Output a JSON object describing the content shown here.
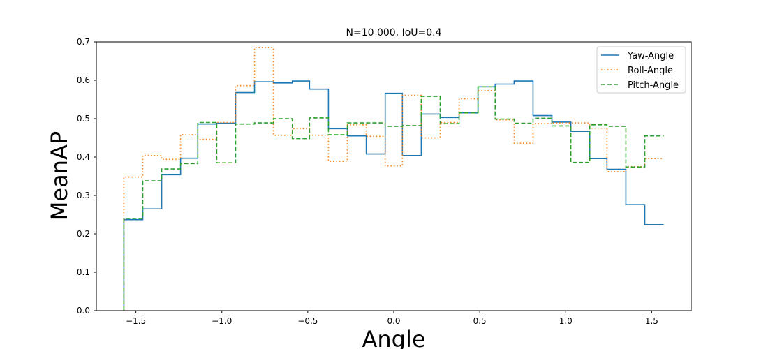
{
  "chart_data": {
    "type": "line",
    "step": true,
    "title": "N=10 000, IoU=0.4",
    "xlabel": "Angle",
    "ylabel": "MeanAP",
    "xlim": [
      -1.73,
      1.73
    ],
    "ylim": [
      0.0,
      0.7
    ],
    "xticks": [
      -1.5,
      -1.0,
      -0.5,
      0.0,
      0.5,
      1.0,
      1.5
    ],
    "xtick_labels": [
      "−1.5",
      "−1.0",
      "−0.5",
      "0.0",
      "0.5",
      "1.0",
      "1.5"
    ],
    "yticks": [
      0.0,
      0.1,
      0.2,
      0.3,
      0.4,
      0.5,
      0.6,
      0.7
    ],
    "ytick_labels": [
      "0.0",
      "0.1",
      "0.2",
      "0.3",
      "0.4",
      "0.5",
      "0.6",
      "0.7"
    ],
    "legend_position": "top-right",
    "x_start": -1.57,
    "series": [
      {
        "name": "Yaw-Angle",
        "color": "#1f77b4",
        "style": "solid",
        "x": [
          -1.57,
          -1.46,
          -1.35,
          -1.24,
          -1.14,
          -1.03,
          -0.92,
          -0.81,
          -0.7,
          -0.59,
          -0.49,
          -0.38,
          -0.27,
          -0.16,
          -0.05,
          0.05,
          0.16,
          0.27,
          0.38,
          0.49,
          0.59,
          0.7,
          0.81,
          0.92,
          1.03,
          1.14,
          1.24,
          1.35,
          1.46,
          1.57
        ],
        "y": [
          0.237,
          0.265,
          0.354,
          0.397,
          0.486,
          0.488,
          0.568,
          0.596,
          0.593,
          0.598,
          0.577,
          0.474,
          0.455,
          0.408,
          0.566,
          0.404,
          0.512,
          0.503,
          0.515,
          0.583,
          0.59,
          0.598,
          0.508,
          0.491,
          0.467,
          0.396,
          0.368,
          0.276,
          0.224,
          0.224
        ]
      },
      {
        "name": "Roll-Angle",
        "color": "#ff7f0e",
        "style": "dotted",
        "x": [
          -1.57,
          -1.46,
          -1.35,
          -1.24,
          -1.14,
          -1.03,
          -0.92,
          -0.81,
          -0.7,
          -0.59,
          -0.49,
          -0.38,
          -0.27,
          -0.16,
          -0.05,
          0.05,
          0.16,
          0.27,
          0.38,
          0.49,
          0.59,
          0.7,
          0.81,
          0.92,
          1.03,
          1.14,
          1.24,
          1.35,
          1.46,
          1.57
        ],
        "y": [
          0.348,
          0.404,
          0.394,
          0.458,
          0.446,
          0.49,
          0.586,
          0.685,
          0.457,
          0.474,
          0.457,
          0.389,
          0.484,
          0.454,
          0.377,
          0.561,
          0.45,
          0.49,
          0.552,
          0.573,
          0.497,
          0.436,
          0.487,
          0.489,
          0.489,
          0.475,
          0.362,
          0.375,
          0.396,
          0.396
        ]
      },
      {
        "name": "Pitch-Angle",
        "color": "#2ca02c",
        "style": "dashed",
        "x": [
          -1.57,
          -1.46,
          -1.35,
          -1.24,
          -1.14,
          -1.03,
          -0.92,
          -0.81,
          -0.7,
          -0.59,
          -0.49,
          -0.38,
          -0.27,
          -0.16,
          -0.05,
          0.05,
          0.16,
          0.27,
          0.38,
          0.49,
          0.59,
          0.7,
          0.81,
          0.92,
          1.03,
          1.14,
          1.24,
          1.35,
          1.46,
          1.57
        ],
        "y": [
          0.24,
          0.338,
          0.369,
          0.383,
          0.49,
          0.385,
          0.486,
          0.489,
          0.5,
          0.448,
          0.502,
          0.458,
          0.489,
          0.489,
          0.48,
          0.482,
          0.558,
          0.487,
          0.515,
          0.583,
          0.499,
          0.488,
          0.501,
          0.481,
          0.386,
          0.484,
          0.48,
          0.374,
          0.455,
          0.455
        ]
      }
    ]
  }
}
